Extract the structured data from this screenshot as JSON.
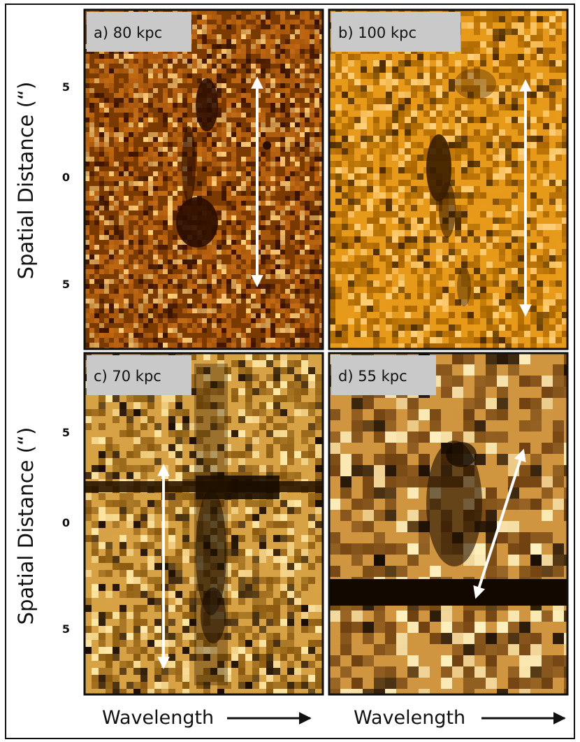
{
  "figure": {
    "y_axis_label": "Spatial Distance (“)",
    "x_axis_label": "Wavelength",
    "y_tick_labels": [
      "5",
      "0",
      "5"
    ],
    "panels": [
      {
        "id": "a",
        "label": "a) 80 kpc",
        "colormap": [
          "#3a1200",
          "#7a3a00",
          "#c36a14",
          "#ffcf7a"
        ]
      },
      {
        "id": "b",
        "label": "b) 100 kpc",
        "colormap": [
          "#4a2a00",
          "#a86400",
          "#e79a1a",
          "#ffd07a"
        ]
      },
      {
        "id": "c",
        "label": "c) 70 kpc",
        "colormap": [
          "#1a0c00",
          "#8a5a10",
          "#d7a245",
          "#ffe9a8"
        ]
      },
      {
        "id": "d",
        "label": "d) 55 kpc",
        "colormap": [
          "#120800",
          "#6e4010",
          "#d09540",
          "#fff2c0"
        ]
      }
    ]
  }
}
